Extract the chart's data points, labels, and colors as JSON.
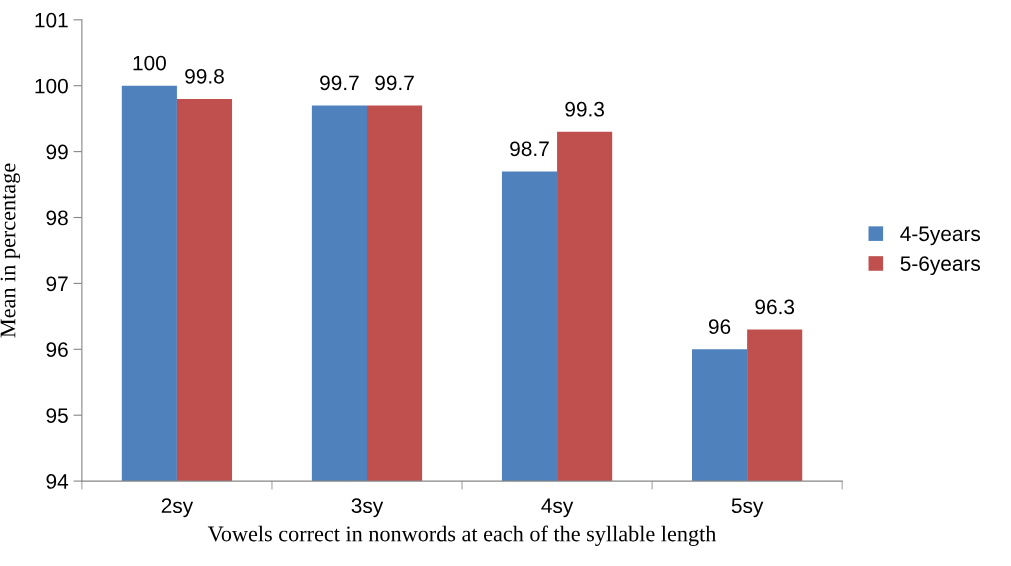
{
  "chart_data": {
    "type": "bar",
    "xlabel": "Vowels correct in nonwords at each of the syllable length",
    "ylabel": "Mean in percentage",
    "categories": [
      "2sy",
      "3sy",
      "4sy",
      "5sy"
    ],
    "series": [
      {
        "name": "4-5years",
        "color": "#4f81bd",
        "values": [
          100,
          99.7,
          98.7,
          96
        ]
      },
      {
        "name": "5-6years",
        "color": "#c0504d",
        "values": [
          99.8,
          99.7,
          99.3,
          96.3
        ]
      }
    ],
    "ylim": [
      94,
      101
    ],
    "yticks": [
      94,
      95,
      96,
      97,
      98,
      99,
      100,
      101
    ],
    "grid": false,
    "legend": "right",
    "data_labels": true
  }
}
